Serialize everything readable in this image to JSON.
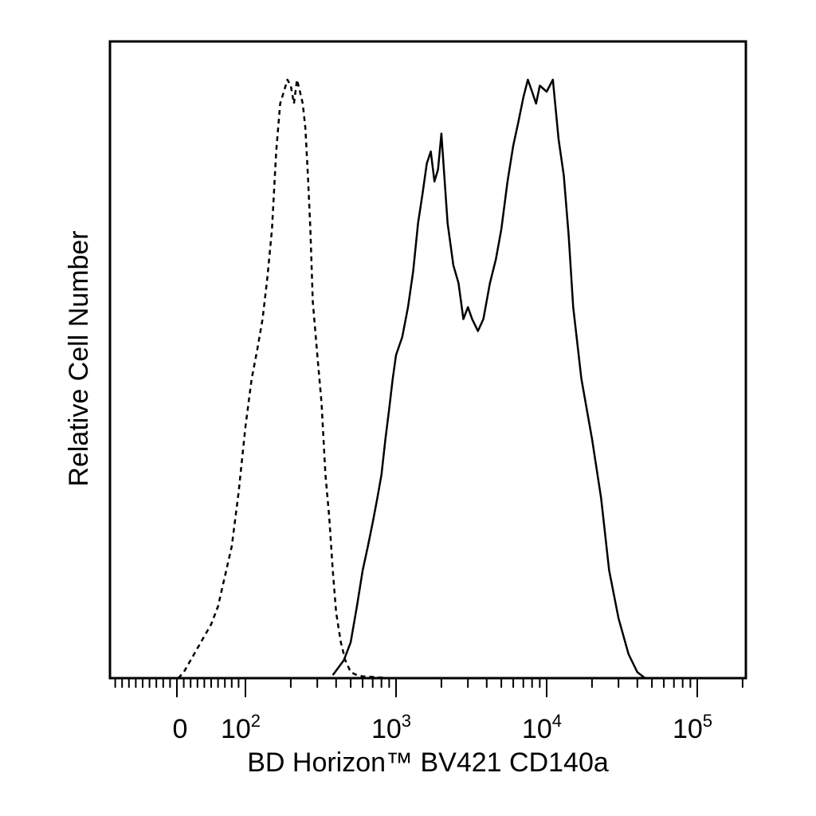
{
  "chart_data": {
    "type": "histogram",
    "xlabel": "BD Horizon™ BV421 CD140a",
    "ylabel": "Relative Cell Number",
    "x_scale": "biexponential (log above 10^2)",
    "xlim": [
      -60,
      200000
    ],
    "ylim": [
      0,
      100
    ],
    "grid": false,
    "legend": "none",
    "x_tick_labels": [
      {
        "value": 0,
        "base": "0",
        "exp": ""
      },
      {
        "value": 100,
        "base": "10",
        "exp": "2"
      },
      {
        "value": 1000,
        "base": "10",
        "exp": "3"
      },
      {
        "value": 10000,
        "base": "10",
        "exp": "4"
      },
      {
        "value": 100000,
        "base": "10",
        "exp": "5"
      }
    ],
    "series": [
      {
        "style": "dashed",
        "x": [
          2,
          10,
          20,
          30,
          40,
          50,
          60,
          70,
          80,
          90,
          100,
          110,
          120,
          130,
          140,
          150,
          160,
          170,
          180,
          190,
          200,
          210,
          220,
          230,
          240,
          250,
          260,
          270,
          280,
          300,
          320,
          340,
          360,
          380,
          400,
          430,
          460,
          500,
          550,
          600,
          700,
          900,
          2000,
          10000,
          30000,
          40000
        ],
        "y": [
          0,
          1,
          3,
          5,
          7,
          9,
          12,
          17,
          22,
          31,
          42,
          50,
          55,
          60,
          67,
          75,
          88,
          96,
          98,
          100,
          99,
          96,
          100,
          98,
          96,
          92,
          84,
          75,
          63,
          54,
          46,
          34,
          27,
          18,
          11,
          6,
          3,
          1,
          0.5,
          0.3,
          0.2,
          0,
          0,
          0,
          0,
          0
        ]
      },
      {
        "style": "solid",
        "x": [
          380,
          450,
          500,
          550,
          600,
          650,
          700,
          750,
          800,
          850,
          900,
          950,
          1000,
          1100,
          1200,
          1300,
          1400,
          1500,
          1600,
          1700,
          1800,
          1900,
          2000,
          2200,
          2400,
          2600,
          2800,
          3000,
          3200,
          3500,
          3800,
          4200,
          4600,
          5000,
          5500,
          6000,
          6500,
          7000,
          7500,
          8000,
          8500,
          9000,
          10000,
          11000,
          12000,
          13000,
          14000,
          15000,
          17000,
          20000,
          23000,
          26000,
          30000,
          35000,
          40000,
          45000
        ],
        "y": [
          0.5,
          3,
          6,
          12,
          18,
          22,
          26,
          30,
          34,
          40,
          45,
          50,
          54,
          57,
          62,
          68,
          76,
          81,
          86,
          88,
          83,
          85,
          91,
          76,
          69,
          66,
          60,
          62,
          60,
          58,
          60,
          66,
          70,
          75,
          83,
          89,
          93,
          97,
          100,
          98,
          96,
          99,
          98,
          100,
          90,
          84,
          74,
          62,
          50,
          40,
          30,
          18,
          10,
          4,
          1,
          0
        ]
      }
    ]
  }
}
